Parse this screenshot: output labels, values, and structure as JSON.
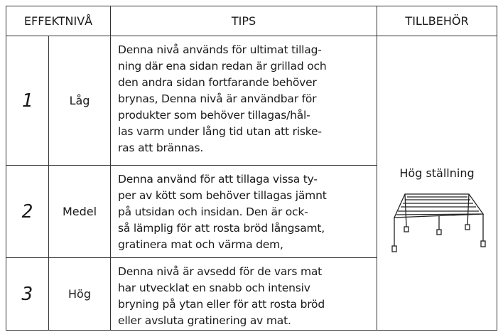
{
  "header": {
    "level": "EFFEKTNIVÅ",
    "tips": "TIPS",
    "accessory": "TILLBEHÖR"
  },
  "rows": [
    {
      "digit": "1",
      "label": "Låg",
      "tips": [
        "Denna nivå används för ultimat tillag-",
        "ning där ena sidan redan är grillad och",
        "den andra sidan fortfarande behöver",
        "brynas, Denna nivå är användbar för",
        "produkter som behöver tillagas/hål-",
        "las varm under lång tid utan att riske-",
        "ras att brännas."
      ]
    },
    {
      "digit": "2",
      "label": "Medel",
      "tips": [
        "Denna använd för att tillaga vissa ty-",
        "per av kött som behöver tillagas jämnt",
        "på utsidan och insidan. Den är ock-",
        "så lämplig för att rosta bröd långsamt,",
        "gratinera mat och värma dem,"
      ]
    },
    {
      "digit": "3",
      "label": "Hög",
      "tips": [
        "Denna nivå är avsedd för de vars mat",
        "har utvecklat en snabb och intensiv",
        "bryning på ytan eller för att rosta bröd",
        "eller avsluta gratinering av mat."
      ]
    }
  ],
  "accessory": "Hög ställning"
}
